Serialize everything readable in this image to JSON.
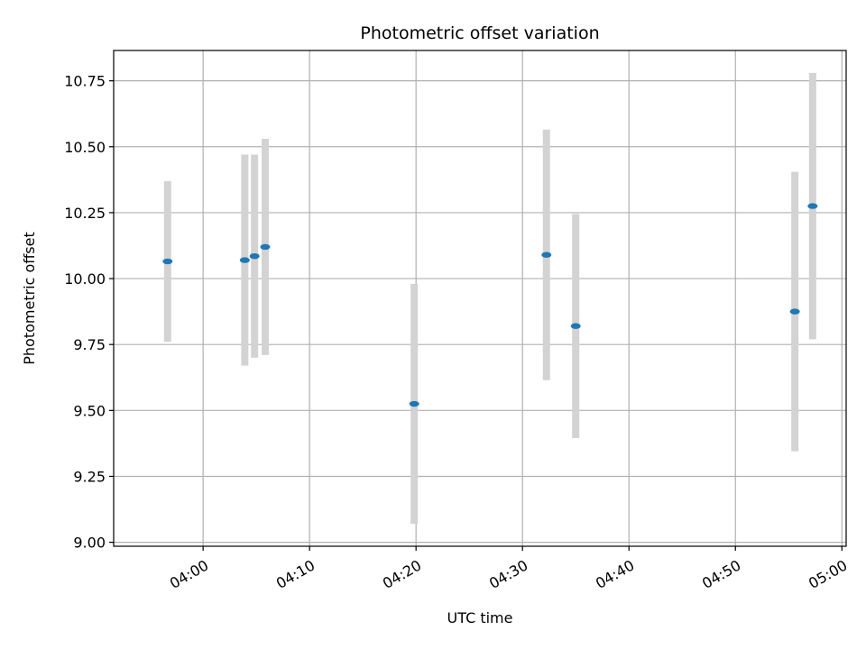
{
  "chart_data": {
    "type": "scatter",
    "title": "Photometric offset variation",
    "xlabel": "UTC time",
    "ylabel": "Photometric offset",
    "x_ticks": [
      "04:00",
      "04:10",
      "04:20",
      "04:30",
      "04:40",
      "04:50",
      "05:00"
    ],
    "y_ticks": [
      "9.00",
      "9.25",
      "9.50",
      "9.75",
      "10.00",
      "10.25",
      "10.50",
      "10.75"
    ],
    "xlim": [
      "03:51:36",
      "05:00:24"
    ],
    "ylim": [
      8.985,
      10.865
    ],
    "grid": true,
    "points": [
      {
        "x": "03:56:40",
        "y": 10.065,
        "err": 0.305
      },
      {
        "x": "04:03:55",
        "y": 10.07,
        "err": 0.4
      },
      {
        "x": "04:04:50",
        "y": 10.085,
        "err": 0.385
      },
      {
        "x": "04:05:50",
        "y": 10.12,
        "err": 0.41
      },
      {
        "x": "04:19:50",
        "y": 9.525,
        "err": 0.455
      },
      {
        "x": "04:32:15",
        "y": 10.09,
        "err": 0.475
      },
      {
        "x": "04:35:00",
        "y": 9.82,
        "err": 0.425
      },
      {
        "x": "04:55:35",
        "y": 9.875,
        "err": 0.53
      },
      {
        "x": "04:57:15",
        "y": 10.275,
        "err": 0.505
      }
    ],
    "colors": {
      "point": "#1f77b4",
      "errorbar": "#d3d3d3",
      "grid": "#b0b0b0",
      "axis": "#000000"
    }
  }
}
